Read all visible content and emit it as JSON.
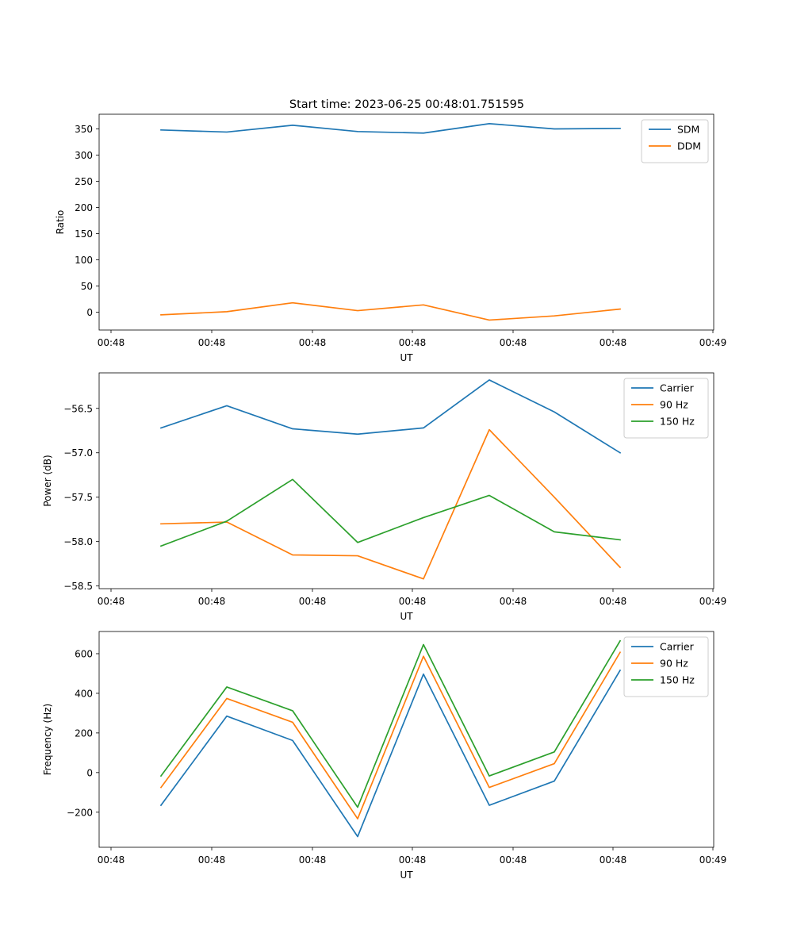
{
  "title": "Start time: 2023-06-25 00:48:01.751595",
  "colors": {
    "blue": "#1f77b4",
    "orange": "#ff7f0e",
    "green": "#2ca02c"
  },
  "chart_data": [
    {
      "type": "line",
      "xlabel": "UT",
      "ylabel": "Ratio",
      "x_tick_labels": [
        "00:48",
        "00:48",
        "00:48",
        "00:48",
        "00:48",
        "00:48",
        "00:49"
      ],
      "y_ticks": [
        0,
        50,
        100,
        150,
        200,
        250,
        300,
        350
      ],
      "y_tick_labels": [
        "0",
        "50",
        "100",
        "150",
        "200",
        "250",
        "300",
        "350"
      ],
      "ylim": [
        -34,
        378
      ],
      "legend_position": "top-right",
      "series": [
        {
          "name": "SDM",
          "color": "#1f77b4",
          "values": [
            348,
            344,
            357,
            345,
            342,
            360,
            350,
            351
          ]
        },
        {
          "name": "DDM",
          "color": "#ff7f0e",
          "values": [
            -5,
            1,
            18,
            3,
            14,
            -15,
            -7,
            6
          ]
        }
      ]
    },
    {
      "type": "line",
      "xlabel": "UT",
      "ylabel": "Power (dB)",
      "x_tick_labels": [
        "00:48",
        "00:48",
        "00:48",
        "00:48",
        "00:48",
        "00:48",
        "00:49"
      ],
      "y_ticks": [
        -58.5,
        -58.0,
        -57.5,
        -57.0,
        -56.5
      ],
      "y_tick_labels": [
        "−58.5",
        "−58.0",
        "−57.5",
        "−57.0",
        "−56.5"
      ],
      "ylim": [
        -58.53,
        -56.1
      ],
      "legend_position": "top-right",
      "series": [
        {
          "name": "Carrier",
          "color": "#1f77b4",
          "values": [
            -56.72,
            -56.47,
            -56.73,
            -56.79,
            -56.72,
            -56.18,
            -56.54,
            -57.0
          ]
        },
        {
          "name": "90 Hz",
          "color": "#ff7f0e",
          "values": [
            -57.8,
            -57.78,
            -58.15,
            -58.16,
            -58.42,
            -56.74,
            -57.5,
            -58.29
          ]
        },
        {
          "name": "150 Hz",
          "color": "#2ca02c",
          "values": [
            -58.05,
            -57.77,
            -57.3,
            -58.01,
            -57.73,
            -57.48,
            -57.89,
            -57.98
          ]
        }
      ]
    },
    {
      "type": "line",
      "xlabel": "UT",
      "ylabel": "Frequency (Hz)",
      "x_tick_labels": [
        "00:48",
        "00:48",
        "00:48",
        "00:48",
        "00:48",
        "00:48",
        "00:49"
      ],
      "y_ticks": [
        -200,
        0,
        200,
        400,
        600
      ],
      "y_tick_labels": [
        "−200",
        "0",
        "200",
        "400",
        "600"
      ],
      "ylim": [
        -377,
        712
      ],
      "legend_position": "top-right",
      "series": [
        {
          "name": "Carrier",
          "color": "#1f77b4",
          "values": [
            -165,
            285,
            162,
            -323,
            497,
            -165,
            -43,
            516
          ]
        },
        {
          "name": "90 Hz",
          "color": "#ff7f0e",
          "values": [
            -75,
            374,
            254,
            -233,
            587,
            -75,
            45,
            607
          ]
        },
        {
          "name": "150 Hz",
          "color": "#2ca02c",
          "values": [
            -17,
            432,
            312,
            -175,
            646,
            -17,
            104,
            665
          ]
        }
      ]
    }
  ]
}
